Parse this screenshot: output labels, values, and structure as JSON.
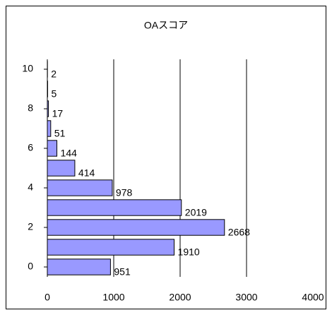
{
  "chart_data": {
    "type": "bar",
    "orientation": "horizontal",
    "title": "OAスコア",
    "categories": [
      0,
      null,
      2,
      null,
      4,
      null,
      6,
      null,
      8,
      null,
      10
    ],
    "values": [
      951,
      1910,
      2668,
      2019,
      978,
      414,
      144,
      51,
      17,
      5,
      2
    ],
    "color": "#9999ff",
    "xlim": [
      0,
      4000
    ],
    "xticks": [
      0,
      1000,
      2000,
      3000,
      4000
    ],
    "grid": true
  }
}
